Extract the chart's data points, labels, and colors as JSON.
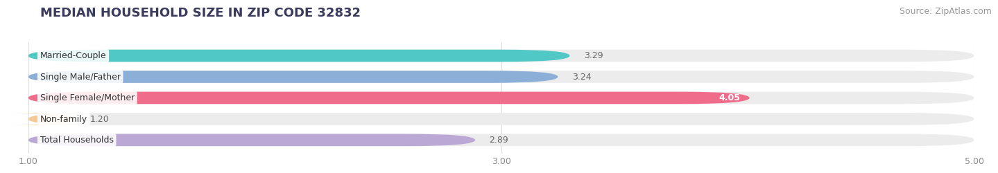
{
  "title": "MEDIAN HOUSEHOLD SIZE IN ZIP CODE 32832",
  "source": "Source: ZipAtlas.com",
  "categories": [
    "Married-Couple",
    "Single Male/Father",
    "Single Female/Mother",
    "Non-family",
    "Total Households"
  ],
  "values": [
    3.29,
    3.24,
    4.05,
    1.2,
    2.89
  ],
  "bar_colors": [
    "#50C8C6",
    "#8BAFD6",
    "#F06C8B",
    "#F5CA96",
    "#BBA8D4"
  ],
  "label_colors": [
    "#333333",
    "#333333",
    "#ffffff",
    "#333333",
    "#333333"
  ],
  "value_inside": [
    false,
    false,
    true,
    false,
    false
  ],
  "xlim_min": 1.0,
  "xlim_max": 5.0,
  "xticks": [
    1.0,
    3.0,
    5.0
  ],
  "background_color": "#ffffff",
  "bar_background_color": "#ececec",
  "title_fontsize": 13,
  "source_fontsize": 9,
  "label_fontsize": 9,
  "value_fontsize": 9,
  "bar_height": 0.58
}
